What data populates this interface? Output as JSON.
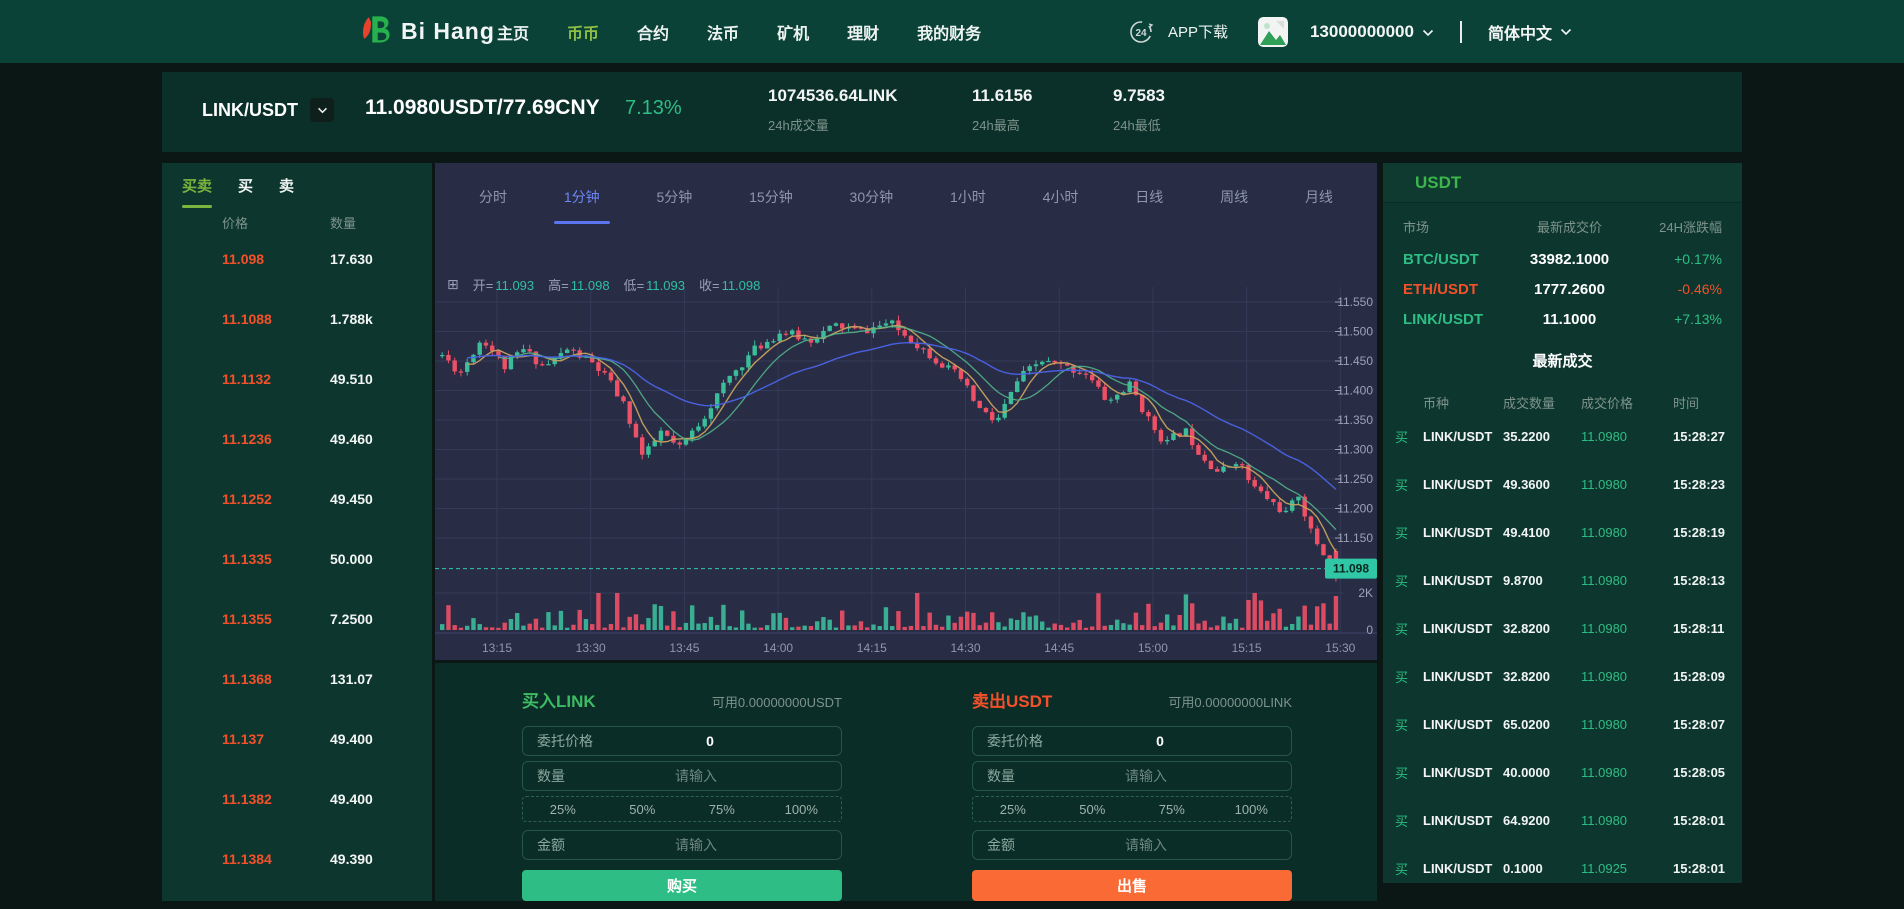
{
  "nav": {
    "logo_text": "Bi Hang",
    "items": [
      {
        "label": "主页",
        "active": false
      },
      {
        "label": "币币",
        "active": true
      },
      {
        "label": "合约",
        "active": false
      },
      {
        "label": "法币",
        "active": false
      },
      {
        "label": "矿机",
        "active": false
      },
      {
        "label": "理财",
        "active": false
      },
      {
        "label": "我的财务",
        "active": false
      }
    ],
    "app_download": "APP下载",
    "phone": "13000000000",
    "language": "简体中文",
    "icons": {
      "support": "24",
      "grid": "⊞"
    }
  },
  "ticker": {
    "pair": "LINK/USDT",
    "price": "11.0980USDT/77.69CNY",
    "change": "7.13%",
    "stats": [
      {
        "value": "1074536.64LINK",
        "label": "24h成交量"
      },
      {
        "value": "11.6156",
        "label": "24h最高"
      },
      {
        "value": "9.7583",
        "label": "24h最低"
      }
    ]
  },
  "orderbook": {
    "tabs": [
      "买卖",
      "买",
      "卖"
    ],
    "active_tab": "买卖",
    "columns": [
      "价格",
      "数量"
    ],
    "rows": [
      {
        "price": "11.098",
        "qty": "17.630"
      },
      {
        "price": "11.1088",
        "qty": "1.788k"
      },
      {
        "price": "11.1132",
        "qty": "49.510"
      },
      {
        "price": "11.1236",
        "qty": "49.460"
      },
      {
        "price": "11.1252",
        "qty": "49.450"
      },
      {
        "price": "11.1335",
        "qty": "50.000"
      },
      {
        "price": "11.1355",
        "qty": "7.2500"
      },
      {
        "price": "11.1368",
        "qty": "131.07"
      },
      {
        "price": "11.137",
        "qty": "49.400"
      },
      {
        "price": "11.1382",
        "qty": "49.400"
      },
      {
        "price": "11.1384",
        "qty": "49.390"
      }
    ]
  },
  "chart": {
    "timeframes": [
      "分时",
      "1分钟",
      "5分钟",
      "15分钟",
      "30分钟",
      "1小时",
      "4小时",
      "日线",
      "周线",
      "月线"
    ],
    "active_timeframe": "1分钟",
    "ohlc": {
      "open_label": "开",
      "open": "11.093",
      "high_label": "高",
      "high": "11.098",
      "low_label": "低",
      "low": "11.093",
      "close_label": "收",
      "close": "11.098"
    },
    "chart_data": {
      "type": "candlestick+volume",
      "y_ticks": [
        "11.550",
        "11.500",
        "11.450",
        "11.400",
        "11.350",
        "11.300",
        "11.250",
        "11.200",
        "11.150"
      ],
      "x_ticks": [
        "13:15",
        "13:30",
        "13:45",
        "14:00",
        "14:15",
        "14:30",
        "14:45",
        "15:00",
        "15:15",
        "15:30"
      ],
      "volume_ticks": [
        "2K",
        "0"
      ],
      "current_price": 11.098,
      "current_price_label": "11.098",
      "candles": 144,
      "seed": 11,
      "price_anchors": [
        [
          0,
          11.46
        ],
        [
          0.02,
          11.43
        ],
        [
          0.045,
          11.49
        ],
        [
          0.07,
          11.44
        ],
        [
          0.09,
          11.47
        ],
        [
          0.115,
          11.44
        ],
        [
          0.14,
          11.47
        ],
        [
          0.165,
          11.45
        ],
        [
          0.185,
          11.42
        ],
        [
          0.205,
          11.37
        ],
        [
          0.225,
          11.285
        ],
        [
          0.245,
          11.33
        ],
        [
          0.265,
          11.3
        ],
        [
          0.29,
          11.35
        ],
        [
          0.32,
          11.42
        ],
        [
          0.35,
          11.47
        ],
        [
          0.38,
          11.5
        ],
        [
          0.41,
          11.485
        ],
        [
          0.44,
          11.51
        ],
        [
          0.47,
          11.5
        ],
        [
          0.5,
          11.515
        ],
        [
          0.53,
          11.48
        ],
        [
          0.555,
          11.45
        ],
        [
          0.58,
          11.42
        ],
        [
          0.6,
          11.37
        ],
        [
          0.62,
          11.345
        ],
        [
          0.645,
          11.42
        ],
        [
          0.67,
          11.45
        ],
        [
          0.695,
          11.44
        ],
        [
          0.72,
          11.43
        ],
        [
          0.745,
          11.38
        ],
        [
          0.77,
          11.41
        ],
        [
          0.79,
          11.35
        ],
        [
          0.81,
          11.31
        ],
        [
          0.83,
          11.335
        ],
        [
          0.85,
          11.29
        ],
        [
          0.87,
          11.26
        ],
        [
          0.89,
          11.285
        ],
        [
          0.905,
          11.24
        ],
        [
          0.925,
          11.215
        ],
        [
          0.945,
          11.19
        ],
        [
          0.958,
          11.225
        ],
        [
          0.972,
          11.16
        ],
        [
          0.985,
          11.125
        ],
        [
          1,
          11.098
        ]
      ],
      "colors": {
        "up": "#3bbd9a",
        "down": "#ee5066",
        "grid": "#333a58",
        "axis_text": "#9aa1b8",
        "time_text": "#8f97ad",
        "ma_fast": "#c8a25e",
        "ma_mid": "#52b488",
        "ma_slow": "#4b63e8",
        "price_tag": "#2fc7a6",
        "price_tag_text": "#07281f"
      }
    }
  },
  "percents": [
    "25%",
    "50%",
    "75%",
    "100%"
  ],
  "buy_form": {
    "title": "买入LINK",
    "available": "可用0.00000000USDT",
    "price_label": "委托价格",
    "price_value": "0",
    "amount_label": "数量",
    "amount_placeholder": "请输入",
    "total_label": "金额",
    "total_placeholder": "请输入",
    "button": "购买"
  },
  "sell_form": {
    "title": "卖出USDT",
    "available": "可用0.00000000LINK",
    "price_label": "委托价格",
    "price_value": "0",
    "amount_label": "数量",
    "amount_placeholder": "请输入",
    "total_label": "金额",
    "total_placeholder": "请输入",
    "button": "出售"
  },
  "market_panel": {
    "title": "USDT",
    "columns": [
      "市场",
      "最新成交价",
      "24H涨跌幅"
    ],
    "rows": [
      {
        "pair": "BTC/USDT",
        "price": "33982.1000",
        "change": "+0.17%",
        "dir": "up"
      },
      {
        "pair": "ETH/USDT",
        "price": "1777.2600",
        "change": "-0.46%",
        "dir": "down"
      },
      {
        "pair": "LINK/USDT",
        "price": "11.1000",
        "change": "+7.13%",
        "dir": "up"
      }
    ],
    "trades_title": "最新成交",
    "trade_columns": [
      "币种",
      "成交数量",
      "成交价格",
      "时间"
    ],
    "trades": [
      {
        "side": "买",
        "pair": "LINK/USDT",
        "qty": "35.2200",
        "price": "11.0980",
        "time": "15:28:27"
      },
      {
        "side": "买",
        "pair": "LINK/USDT",
        "qty": "49.3600",
        "price": "11.0980",
        "time": "15:28:23"
      },
      {
        "side": "买",
        "pair": "LINK/USDT",
        "qty": "49.4100",
        "price": "11.0980",
        "time": "15:28:19"
      },
      {
        "side": "买",
        "pair": "LINK/USDT",
        "qty": "9.8700",
        "price": "11.0980",
        "time": "15:28:13"
      },
      {
        "side": "买",
        "pair": "LINK/USDT",
        "qty": "32.8200",
        "price": "11.0980",
        "time": "15:28:11"
      },
      {
        "side": "买",
        "pair": "LINK/USDT",
        "qty": "32.8200",
        "price": "11.0980",
        "time": "15:28:09"
      },
      {
        "side": "买",
        "pair": "LINK/USDT",
        "qty": "65.0200",
        "price": "11.0980",
        "time": "15:28:07"
      },
      {
        "side": "买",
        "pair": "LINK/USDT",
        "qty": "40.0000",
        "price": "11.0980",
        "time": "15:28:05"
      },
      {
        "side": "买",
        "pair": "LINK/USDT",
        "qty": "64.9200",
        "price": "11.0980",
        "time": "15:28:01"
      },
      {
        "side": "买",
        "pair": "LINK/USDT",
        "qty": "0.1000",
        "price": "11.0925",
        "time": "15:28:01"
      }
    ]
  }
}
